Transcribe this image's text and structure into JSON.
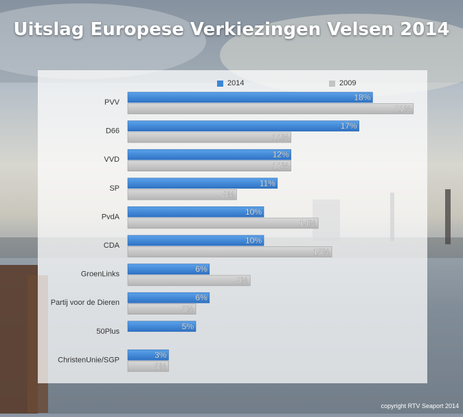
{
  "title": "Uitslag Europese Verkiezingen Velsen 2014",
  "copyright": "copyright RTV Seaport 2014",
  "colors": {
    "series_2014": "#3b86d8",
    "series_2009": "#c3c3c3"
  },
  "chart_data": {
    "type": "bar",
    "orientation": "horizontal",
    "title": "Uitslag Europese Verkiezingen Velsen 2014",
    "categories": [
      "PVV",
      "D66",
      "VVD",
      "SP",
      "PvdA",
      "CDA",
      "GroenLinks",
      "Partij voor de Dieren",
      "50Plus",
      "ChristenUnie/SGP"
    ],
    "series": [
      {
        "name": "2014",
        "values": [
          18,
          17,
          12,
          11,
          10,
          10,
          6,
          6,
          5,
          3
        ],
        "labels": [
          "18%",
          "17%",
          "12%",
          "11%",
          "10%",
          "10%",
          "6%",
          "6%",
          "5%",
          "3%"
        ]
      },
      {
        "name": "2009",
        "values": [
          21,
          12,
          12,
          8,
          14,
          15,
          9,
          5,
          null,
          3
        ],
        "labels": [
          "21%",
          "12%",
          "12%",
          "8%",
          "14%",
          "15%",
          "9%",
          "5%",
          "",
          "3%"
        ]
      }
    ],
    "value_unit": "%",
    "legend_position": "top",
    "grid": false
  }
}
